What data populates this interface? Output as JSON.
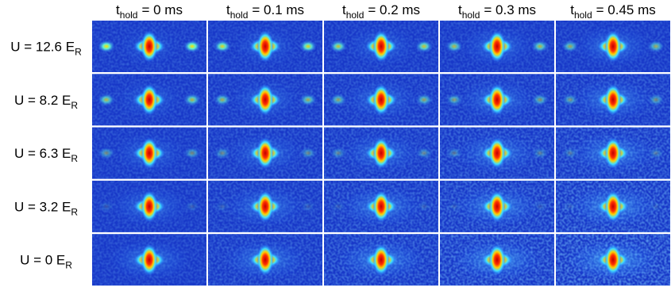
{
  "columns": [
    {
      "symbol": "t",
      "subscript": "hold",
      "text": "= 0 ms"
    },
    {
      "symbol": "t",
      "subscript": "hold",
      "text": "= 0.1 ms"
    },
    {
      "symbol": "t",
      "subscript": "hold",
      "text": "= 0.2 ms"
    },
    {
      "symbol": "t",
      "subscript": "hold",
      "text": "= 0.3 ms"
    },
    {
      "symbol": "t",
      "subscript": "hold",
      "text": "= 0.45 ms"
    }
  ],
  "rows": [
    {
      "text": "U = 12.6 E",
      "subscript": "R"
    },
    {
      "text": "U = 8.2 E",
      "subscript": "R"
    },
    {
      "text": "U = 6.3 E",
      "subscript": "R"
    },
    {
      "text": "U = 3.2 E",
      "subscript": "R"
    },
    {
      "text": "U = 0 E",
      "subscript": "R"
    }
  ]
}
